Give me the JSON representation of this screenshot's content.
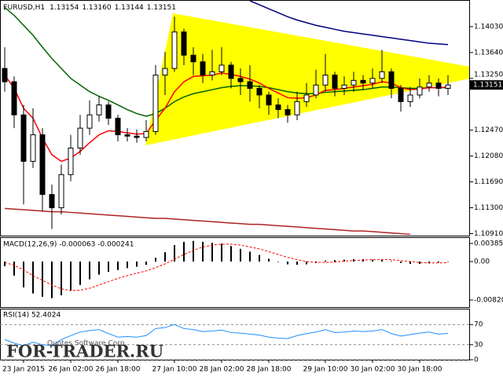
{
  "chart_data": [
    {
      "type": "candlestick",
      "title": "EURUSD,H1",
      "header_values": [
        1.13154,
        {
          "value": 1.1316,
          "label": "1.13160"
        },
        1.13144,
        1.13151
      ],
      "categories": [
        null,
        null,
        "23 Jan 2015",
        null,
        null,
        null,
        null,
        "26 Jan 02:00",
        null,
        null,
        null,
        null,
        "26 Jan 18:00",
        null,
        null,
        null,
        null,
        null,
        "27 Jan 10:00",
        null,
        null,
        null,
        null,
        "28 Jan 02:00",
        null,
        null,
        null,
        null,
        "28 Jan 18:00",
        null,
        null,
        null,
        null,
        null,
        "29 Jan 10:00",
        null,
        null,
        null,
        null,
        "30 Jan 02:00",
        null,
        null,
        null,
        null,
        "30 Jan 18:00",
        null,
        null,
        null
      ],
      "open": [
        1.134,
        1.132,
        1.127,
        1.12,
        1.124,
        1.115,
        1.113,
        1.118,
        1.122,
        1.125,
        1.127,
        1.1285,
        1.1265,
        1.124,
        1.1238,
        1.1236,
        1.1245,
        1.133,
        1.134,
        1.1395,
        1.136,
        1.135,
        1.133,
        1.1335,
        1.1345,
        1.1325,
        1.132,
        1.131,
        1.13,
        1.1285,
        1.1278,
        1.127,
        1.129,
        1.13,
        1.1315,
        1.133,
        1.131,
        1.1315,
        1.1322,
        1.1318,
        1.1325,
        1.1335,
        1.131,
        1.129,
        1.13,
        1.1312,
        1.1318,
        1.131
      ],
      "high": [
        1.1372,
        1.1328,
        1.1285,
        1.128,
        1.125,
        1.1165,
        1.1195,
        1.124,
        1.127,
        1.1292,
        1.1298,
        1.129,
        1.127,
        1.125,
        1.1248,
        1.1262,
        1.1345,
        1.1365,
        1.1418,
        1.14,
        1.1372,
        1.1362,
        1.1368,
        1.1372,
        1.135,
        1.134,
        1.1345,
        1.1315,
        1.1305,
        1.1295,
        1.1285,
        1.1305,
        1.1318,
        1.1338,
        1.1362,
        1.1335,
        1.1328,
        1.1335,
        1.133,
        1.134,
        1.1368,
        1.134,
        1.1315,
        1.1312,
        1.1325,
        1.133,
        1.1325,
        1.133
      ],
      "low": [
        1.1305,
        1.125,
        1.1135,
        1.119,
        1.1125,
        1.1098,
        1.112,
        1.117,
        1.121,
        1.124,
        1.126,
        1.1255,
        1.123,
        1.123,
        1.1228,
        1.123,
        1.124,
        1.13,
        1.1335,
        1.1345,
        1.133,
        1.1318,
        1.1322,
        1.133,
        1.131,
        1.13,
        1.129,
        1.128,
        1.127,
        1.1265,
        1.1258,
        1.1262,
        1.1282,
        1.1295,
        1.1305,
        1.1298,
        1.13,
        1.1305,
        1.1308,
        1.131,
        1.1318,
        1.1295,
        1.1275,
        1.1282,
        1.1295,
        1.1305,
        1.1298,
        1.13
      ],
      "close": [
        1.132,
        1.127,
        1.12,
        1.124,
        1.115,
        1.113,
        1.118,
        1.122,
        1.125,
        1.127,
        1.1285,
        1.1265,
        1.124,
        1.1238,
        1.1236,
        1.1245,
        1.133,
        1.134,
        1.1395,
        1.136,
        1.135,
        1.133,
        1.1335,
        1.1345,
        1.1325,
        1.132,
        1.131,
        1.13,
        1.1285,
        1.1278,
        1.127,
        1.129,
        1.13,
        1.1315,
        1.133,
        1.131,
        1.1315,
        1.1322,
        1.1318,
        1.1325,
        1.1335,
        1.131,
        1.129,
        1.13,
        1.1312,
        1.1318,
        1.131,
        1.13151
      ],
      "bull_color": "#ffffff",
      "bear_color": "#000000",
      "moving_averages": [
        {
          "color": "#b22222",
          "values": [
            1.1129,
            1.1128,
            1.1127,
            1.1126,
            1.1125,
            1.1124,
            1.1124,
            1.1123,
            1.1122,
            1.1121,
            1.112,
            1.1119,
            1.1118,
            1.1117,
            1.1116,
            1.1115,
            1.1114,
            1.1114,
            1.1113,
            1.1112,
            1.1111,
            1.111,
            1.1109,
            1.1108,
            1.1107,
            1.1106,
            1.1105,
            1.1105,
            1.1104,
            1.1103,
            1.1102,
            1.1101,
            1.11,
            1.1099,
            1.1098,
            1.1097,
            1.1096,
            1.1095,
            1.1095,
            1.1094,
            1.1093,
            1.1092,
            1.1091,
            1.109,
            null,
            null,
            null,
            null
          ]
        },
        {
          "color": "#000080",
          "values": [
            null,
            null,
            null,
            null,
            null,
            null,
            null,
            null,
            null,
            null,
            null,
            null,
            null,
            null,
            null,
            null,
            null,
            null,
            null,
            null,
            null,
            null,
            null,
            null,
            null,
            null,
            1.1442,
            1.1436,
            1.143,
            1.1424,
            1.1418,
            1.1413,
            1.1409,
            1.1405,
            1.1402,
            1.1399,
            1.1396,
            1.1394,
            1.1392,
            1.139,
            1.1388,
            1.1386,
            1.1384,
            1.1382,
            1.138,
            1.1378,
            1.1377,
            1.1376
          ]
        },
        {
          "color": "#006400",
          "values": [
            1.1432,
            1.142,
            1.1405,
            1.139,
            1.1372,
            1.1355,
            1.134,
            1.1325,
            1.1315,
            1.1305,
            1.1298,
            1.1292,
            1.1285,
            1.1278,
            1.1272,
            1.1268,
            1.1272,
            1.128,
            1.129,
            1.1297,
            1.1302,
            1.1305,
            1.1308,
            1.1311,
            1.1313,
            1.1314,
            1.1314,
            1.1313,
            1.1311,
            1.1308,
            1.1305,
            1.1303,
            1.1302,
            1.1302,
            1.1304,
            1.1305,
            1.1306,
            1.1307,
            1.1308,
            1.131,
            1.1312,
            1.1312,
            1.1311,
            1.131,
            1.131,
            1.1311,
            1.1311,
            1.1311
          ]
        },
        {
          "color": "#ff0000",
          "values": [
            1.133,
            1.131,
            1.128,
            1.1265,
            1.1235,
            1.121,
            1.12,
            1.1205,
            1.1215,
            1.1228,
            1.124,
            1.1246,
            1.1245,
            1.1243,
            1.1241,
            1.1242,
            1.1262,
            1.128,
            1.1305,
            1.132,
            1.1328,
            1.1329,
            1.133,
            1.1333,
            1.1331,
            1.1328,
            1.1324,
            1.1318,
            1.131,
            1.1303,
            1.1296,
            1.1295,
            1.1296,
            1.13,
            1.1307,
            1.1308,
            1.131,
            1.1312,
            1.1314,
            1.1316,
            1.132,
            1.1318,
            1.1311,
            1.1308,
            1.1309,
            1.1311,
            1.1311,
            1.1312
          ]
        }
      ],
      "ylim": [
        1.1088,
        1.1442
      ],
      "yticks": [
        {
          "value": 1.1403,
          "label": "1.14030"
        },
        {
          "value": 1.1364,
          "label": "1.13640"
        },
        {
          "value": 1.1325,
          "label": "1.13250"
        },
        {
          "value": 1.1247,
          "label": "1.12470"
        },
        {
          "value": 1.1208,
          "label": "1.12080"
        },
        {
          "value": 1.1169,
          "label": "1.11690"
        },
        {
          "value": 1.113,
          "label": "1.11300"
        },
        {
          "value": 1.1091,
          "label": "1.10910"
        }
      ]
    },
    {
      "type": "macd",
      "title": "MACD(12,26,9) -0.000063 -0.000241",
      "histogram": [
        -0.001,
        -0.003,
        -0.0055,
        -0.0068,
        -0.0075,
        -0.0078,
        -0.0072,
        -0.0062,
        -0.005,
        -0.0038,
        -0.0028,
        -0.0022,
        -0.0018,
        -0.0014,
        -0.0011,
        -0.0007,
        0.0008,
        0.002,
        0.0035,
        0.0042,
        0.0044,
        0.0042,
        0.004,
        0.0038,
        0.0033,
        0.0027,
        0.0021,
        0.0014,
        0.0006,
        -0.0001,
        -0.0006,
        -0.0007,
        -0.0006,
        -0.0003,
        0.0002,
        0.0003,
        0.0004,
        0.0005,
        0.0005,
        0.0004,
        0.0004,
        0.0001,
        -0.0003,
        -0.0005,
        -0.0005,
        -0.0004,
        -0.0002,
        -6.3e-05
      ],
      "signal": [
        -0.0002,
        -0.0008,
        -0.0018,
        -0.003,
        -0.004,
        -0.005,
        -0.0058,
        -0.0062,
        -0.0061,
        -0.0057,
        -0.005,
        -0.0043,
        -0.0036,
        -0.003,
        -0.0025,
        -0.002,
        -0.0013,
        -0.0005,
        0.0005,
        0.0015,
        0.0024,
        0.0031,
        0.0035,
        0.0037,
        0.0037,
        0.0035,
        0.0031,
        0.0027,
        0.0021,
        0.0015,
        0.0009,
        0.0004,
        0.0,
        -0.0002,
        -0.0002,
        -0.0001,
        0.0001,
        0.0002,
        0.0003,
        0.0004,
        0.0004,
        0.0004,
        0.0002,
        0.0,
        -0.0002,
        -0.0003,
        -0.0003,
        -0.000241
      ],
      "histogram_color": "#000000",
      "signal_color": "#ff0000",
      "ylim": [
        -0.00971,
        0.00502
      ],
      "yticks": [
        0.00385,
        {
          "value": 0,
          "label": "0.00"
        },
        -0.008201
      ]
    },
    {
      "type": "line",
      "title": "RSI(14) 52.4024",
      "values": [
        40,
        33,
        28,
        35,
        30,
        28,
        40,
        48,
        55,
        58,
        60,
        52,
        45,
        46,
        45,
        48,
        62,
        64,
        70,
        62,
        60,
        56,
        57,
        59,
        54,
        53,
        51,
        49,
        45,
        43,
        42,
        48,
        52,
        55,
        60,
        54,
        55,
        57,
        56,
        57,
        60,
        52,
        47,
        50,
        53,
        55,
        51,
        52.4024
      ],
      "color": "#1e90ff",
      "ylim": [
        0,
        100
      ],
      "yticks": [
        70,
        30,
        0
      ],
      "grid": true
    }
  ],
  "watermark": {
    "site": "FOR-TRADER.RU",
    "copyright": "Quotes Software Corp."
  }
}
